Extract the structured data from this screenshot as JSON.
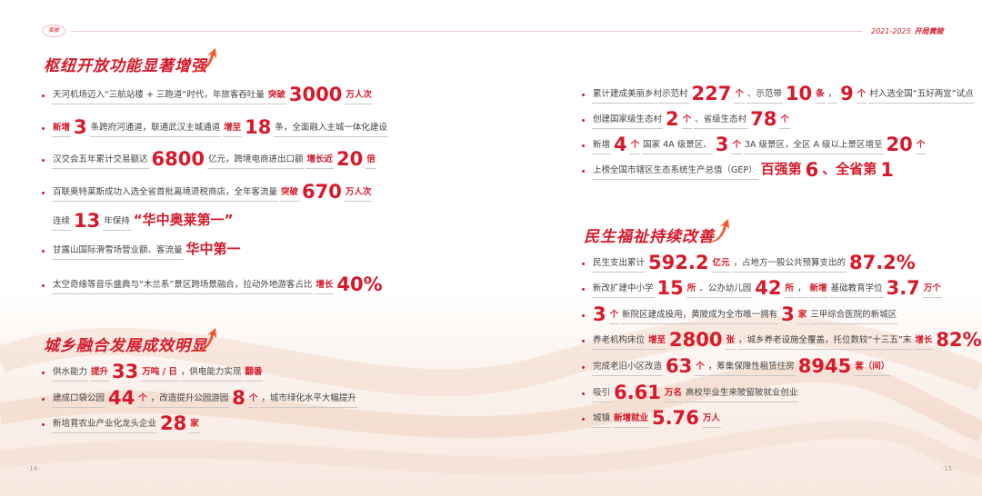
{
  "header": {
    "years": "2021-2025",
    "brand": "开局黄陂",
    "logo_text": "黄陂"
  },
  "left": {
    "section1": {
      "title": "枢纽开放功能显著增强",
      "items": [
        [
          {
            "t": "天河机场迈入“三航站楼 + 三跑道”时代，年旅客吞吐量"
          },
          {
            "t": "突破",
            "s": "r"
          },
          {
            "t": "3000",
            "s": "b"
          },
          {
            "t": "万人次",
            "s": "r"
          }
        ],
        [
          {
            "t": "新增",
            "s": "r"
          },
          {
            "t": "3",
            "s": "b"
          },
          {
            "t": "条跨府河通道，联通武汉主城通道",
            "s": "r1"
          },
          {
            "t": "增至",
            "s": "r"
          },
          {
            "t": "18",
            "s": "b"
          },
          {
            "t": "条，全面融入主城一体化建设"
          }
        ],
        [
          {
            "t": "汉交会五年累计交易额达"
          },
          {
            "t": "6800",
            "s": "b"
          },
          {
            "t": "亿元，跨境电商进出口额"
          },
          {
            "t": "增长近",
            "s": "r"
          },
          {
            "t": "20",
            "s": "b"
          },
          {
            "t": "倍",
            "s": "r"
          }
        ],
        [
          {
            "t": "百联奥特莱斯成功入选全省首批离境退税商店，全年客流量"
          },
          {
            "t": "突破",
            "s": "r"
          },
          {
            "t": "670",
            "s": "b"
          },
          {
            "t": "万人次",
            "s": "r"
          }
        ],
        [
          {
            "t": "连续"
          },
          {
            "t": "13",
            "s": "b"
          },
          {
            "t": "年保持"
          },
          {
            "t": "“华中奥莱第一”",
            "s": "m"
          }
        ],
        [
          {
            "t": "甘露山国际滑雪场营业额、客流量"
          },
          {
            "t": "华中第一",
            "s": "m"
          }
        ],
        [
          {
            "t": "太空奇缘等音乐盛典与“木兰系”景区跨场景融合，拉动外地游客占比"
          },
          {
            "t": "增长",
            "s": "r"
          },
          {
            "t": "40%",
            "s": "b"
          }
        ]
      ]
    },
    "section2": {
      "title": "城乡融合发展成效明显",
      "items": [
        [
          {
            "t": "供水能力"
          },
          {
            "t": "提升",
            "s": "r"
          },
          {
            "t": "33",
            "s": "b"
          },
          {
            "t": "万吨 / 日",
            "s": "r"
          },
          {
            "t": "，供电能力实现"
          },
          {
            "t": "翻番",
            "s": "r"
          }
        ],
        [
          {
            "t": "建成口袋公园"
          },
          {
            "t": "44",
            "s": "b"
          },
          {
            "t": "个",
            "s": "r"
          },
          {
            "t": "，改造提升公园游园"
          },
          {
            "t": "8",
            "s": "b"
          },
          {
            "t": "个",
            "s": "r"
          },
          {
            "t": "，城市绿化水平大幅提升"
          }
        ],
        [
          {
            "t": "新培育农业产业化龙头企业"
          },
          {
            "t": "28",
            "s": "b"
          },
          {
            "t": "家",
            "s": "r"
          }
        ]
      ]
    },
    "page_number": "·14·"
  },
  "right": {
    "section0": {
      "items": [
        [
          {
            "t": "累计建成美丽乡村示范村"
          },
          {
            "t": "227",
            "s": "b"
          },
          {
            "t": "个",
            "s": "r"
          },
          {
            "t": "、示范带"
          },
          {
            "t": "10",
            "s": "b"
          },
          {
            "t": "条",
            "s": "r"
          },
          {
            "t": "，"
          },
          {
            "t": "9",
            "s": "b"
          },
          {
            "t": "个",
            "s": "r"
          },
          {
            "t": "村入选全国“五好两宜”试点"
          }
        ],
        [
          {
            "t": "创建国家级生态村"
          },
          {
            "t": "2",
            "s": "b"
          },
          {
            "t": "个",
            "s": "r"
          },
          {
            "t": "、省级生态村"
          },
          {
            "t": "78",
            "s": "b"
          },
          {
            "t": "个",
            "s": "r"
          }
        ],
        [
          {
            "t": "新增"
          },
          {
            "t": "4",
            "s": "b"
          },
          {
            "t": "个",
            "s": "r"
          },
          {
            "t": "国家 4A 级景区、"
          },
          {
            "t": "3",
            "s": "b"
          },
          {
            "t": "个",
            "s": "r"
          },
          {
            "t": "3A 级景区，全区 A 级以上景区增至"
          },
          {
            "t": "20",
            "s": "b"
          },
          {
            "t": "个",
            "s": "r"
          }
        ],
        [
          {
            "t": "上榜全国市辖区生态系统生产总值（GEP）"
          },
          {
            "t": "百强第",
            "s": "m"
          },
          {
            "t": "6",
            "s": "b"
          },
          {
            "t": "、全省第",
            "s": "m"
          },
          {
            "t": "1",
            "s": "b"
          }
        ]
      ]
    },
    "section3": {
      "title": "民生福祉持续改善",
      "items": [
        [
          {
            "t": "民生支出累计"
          },
          {
            "t": "592.2",
            "s": "b"
          },
          {
            "t": "亿元",
            "s": "r"
          },
          {
            "t": "，占地方一般公共预算支出的"
          },
          {
            "t": "87.2%",
            "s": "b"
          }
        ],
        [
          {
            "t": "新改扩建中小学"
          },
          {
            "t": "15",
            "s": "b"
          },
          {
            "t": "所",
            "s": "r"
          },
          {
            "t": "、公办幼儿园"
          },
          {
            "t": "42",
            "s": "b"
          },
          {
            "t": "所",
            "s": "r"
          },
          {
            "t": "，"
          },
          {
            "t": "新增",
            "s": "r"
          },
          {
            "t": "基础教育学位"
          },
          {
            "t": "3.7",
            "s": "b"
          },
          {
            "t": "万个",
            "s": "r"
          }
        ],
        [
          {
            "t": "3",
            "s": "b"
          },
          {
            "t": "个",
            "s": "r"
          },
          {
            "t": "新院区建成投用，黄陂成为全市唯一拥有"
          },
          {
            "t": "3",
            "s": "b"
          },
          {
            "t": "家",
            "s": "r"
          },
          {
            "t": "三甲综合医院的新城区"
          }
        ],
        [
          {
            "t": "养老机构床位"
          },
          {
            "t": "增至",
            "s": "r"
          },
          {
            "t": "2800",
            "s": "b"
          },
          {
            "t": "张",
            "s": "r"
          },
          {
            "t": "，城乡养老设施全覆盖，托位数较“十三五”末"
          },
          {
            "t": "增长",
            "s": "r"
          },
          {
            "t": "82%",
            "s": "b"
          }
        ],
        [
          {
            "t": "完成老旧小区改造"
          },
          {
            "t": "63",
            "s": "b"
          },
          {
            "t": "个",
            "s": "r"
          },
          {
            "t": "，筹集保障性租赁住房"
          },
          {
            "t": "8945",
            "s": "b"
          },
          {
            "t": "套（间）",
            "s": "r"
          }
        ],
        [
          {
            "t": "吸引"
          },
          {
            "t": "6.61",
            "s": "b"
          },
          {
            "t": "万名",
            "s": "r"
          },
          {
            "t": "高校毕业生来陂留陂就业创业"
          }
        ],
        [
          {
            "t": "城镇"
          },
          {
            "t": "新增就业",
            "s": "r"
          },
          {
            "t": "5.76",
            "s": "b"
          },
          {
            "t": "万人",
            "s": "r"
          }
        ]
      ]
    },
    "page_number": "·15·"
  },
  "colors": {
    "accent": "#d7192a",
    "text": "#444444"
  }
}
